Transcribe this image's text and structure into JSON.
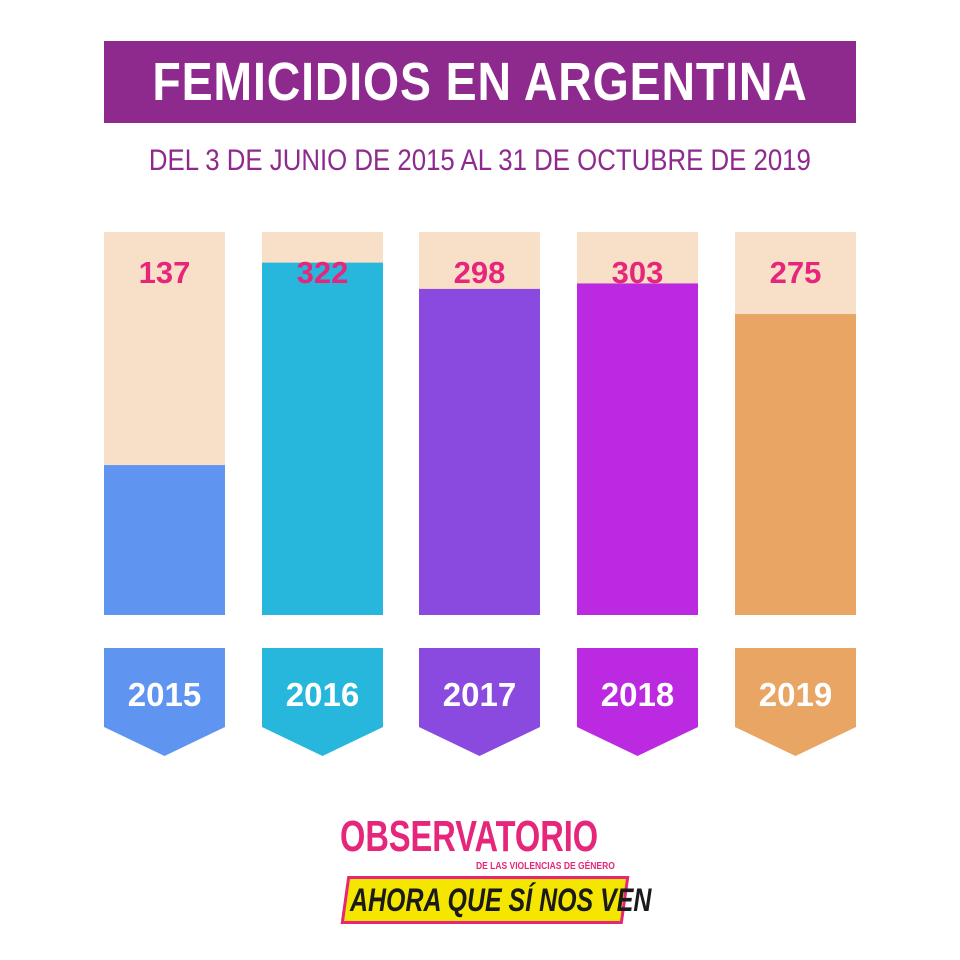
{
  "header": {
    "title": "FEMICIDIOS EN ARGENTINA",
    "subtitle": "DEL 3 DE JUNIO DE 2015 AL 31 DE OCTUBRE DE 2019"
  },
  "chart_data": {
    "type": "bar",
    "categories": [
      "2015",
      "2016",
      "2017",
      "2018",
      "2019"
    ],
    "values": [
      137,
      322,
      298,
      303,
      275
    ],
    "ylim": [
      0,
      350
    ],
    "colors": [
      "#5f95f0",
      "#27b7dd",
      "#8a4ae0",
      "#bb2ae0",
      "#e8a563"
    ],
    "track_color": "#f8dfc8",
    "label_color": "#e6267a",
    "grid": false,
    "legend": "none"
  },
  "logo": {
    "main": "OBSERVATORIO",
    "sub": "DE LAS VIOLENCIAS DE GÉNERO",
    "band": "AHORA QUE SÍ NOS VEN",
    "colors": {
      "pink": "#e6267a",
      "yellow": "#f5e600"
    }
  }
}
